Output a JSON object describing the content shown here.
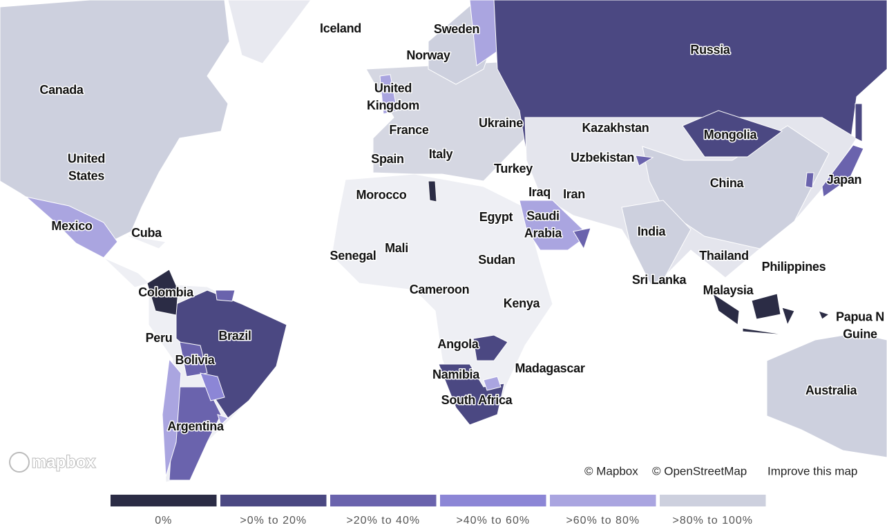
{
  "map": {
    "labels": [
      "Iceland",
      "Sweden",
      "Norway",
      "Russia",
      "Canada",
      [
        "United",
        "Kingdom"
      ],
      "France",
      "Ukraine",
      "Kazakhstan",
      "Mongolia",
      [
        "United",
        "States"
      ],
      "Spain",
      "Italy",
      "Uzbekistan",
      "Turkey",
      "China",
      "Japan",
      "Morocco",
      "Iraq",
      "Iran",
      "Mexico",
      "Cuba",
      "Egypt",
      [
        "Saudi",
        "Arabia"
      ],
      "India",
      "Senegal",
      "Mali",
      "Sudan",
      "Thailand",
      "Philippines",
      "Sri Lanka",
      "Colombia",
      "Cameroon",
      "Malaysia",
      "Kenya",
      [
        "Papua N",
        "Guine"
      ],
      "Peru",
      "Brazil",
      "Angola",
      "Bolivia",
      "Madagascar",
      "Namibia",
      "South Africa",
      "Australia",
      "Argentina"
    ],
    "attribution": [
      "© Mapbox",
      "© OpenStreetMap",
      "Improve this map"
    ],
    "logo": "mapbox"
  },
  "legend": {
    "items": [
      {
        "label": "0%",
        "color": "#2b2c45"
      },
      {
        "label": ">0% to 20%",
        "color": "#4b4882"
      },
      {
        "label": ">20% to 40%",
        "color": "#6a63ad"
      },
      {
        "label": ">40% to 60%",
        "color": "#8c86d6"
      },
      {
        "label": ">60% to 80%",
        "color": "#aaa5e0"
      },
      {
        "label": ">80% to 100%",
        "color": "#cdd0de"
      }
    ]
  }
}
